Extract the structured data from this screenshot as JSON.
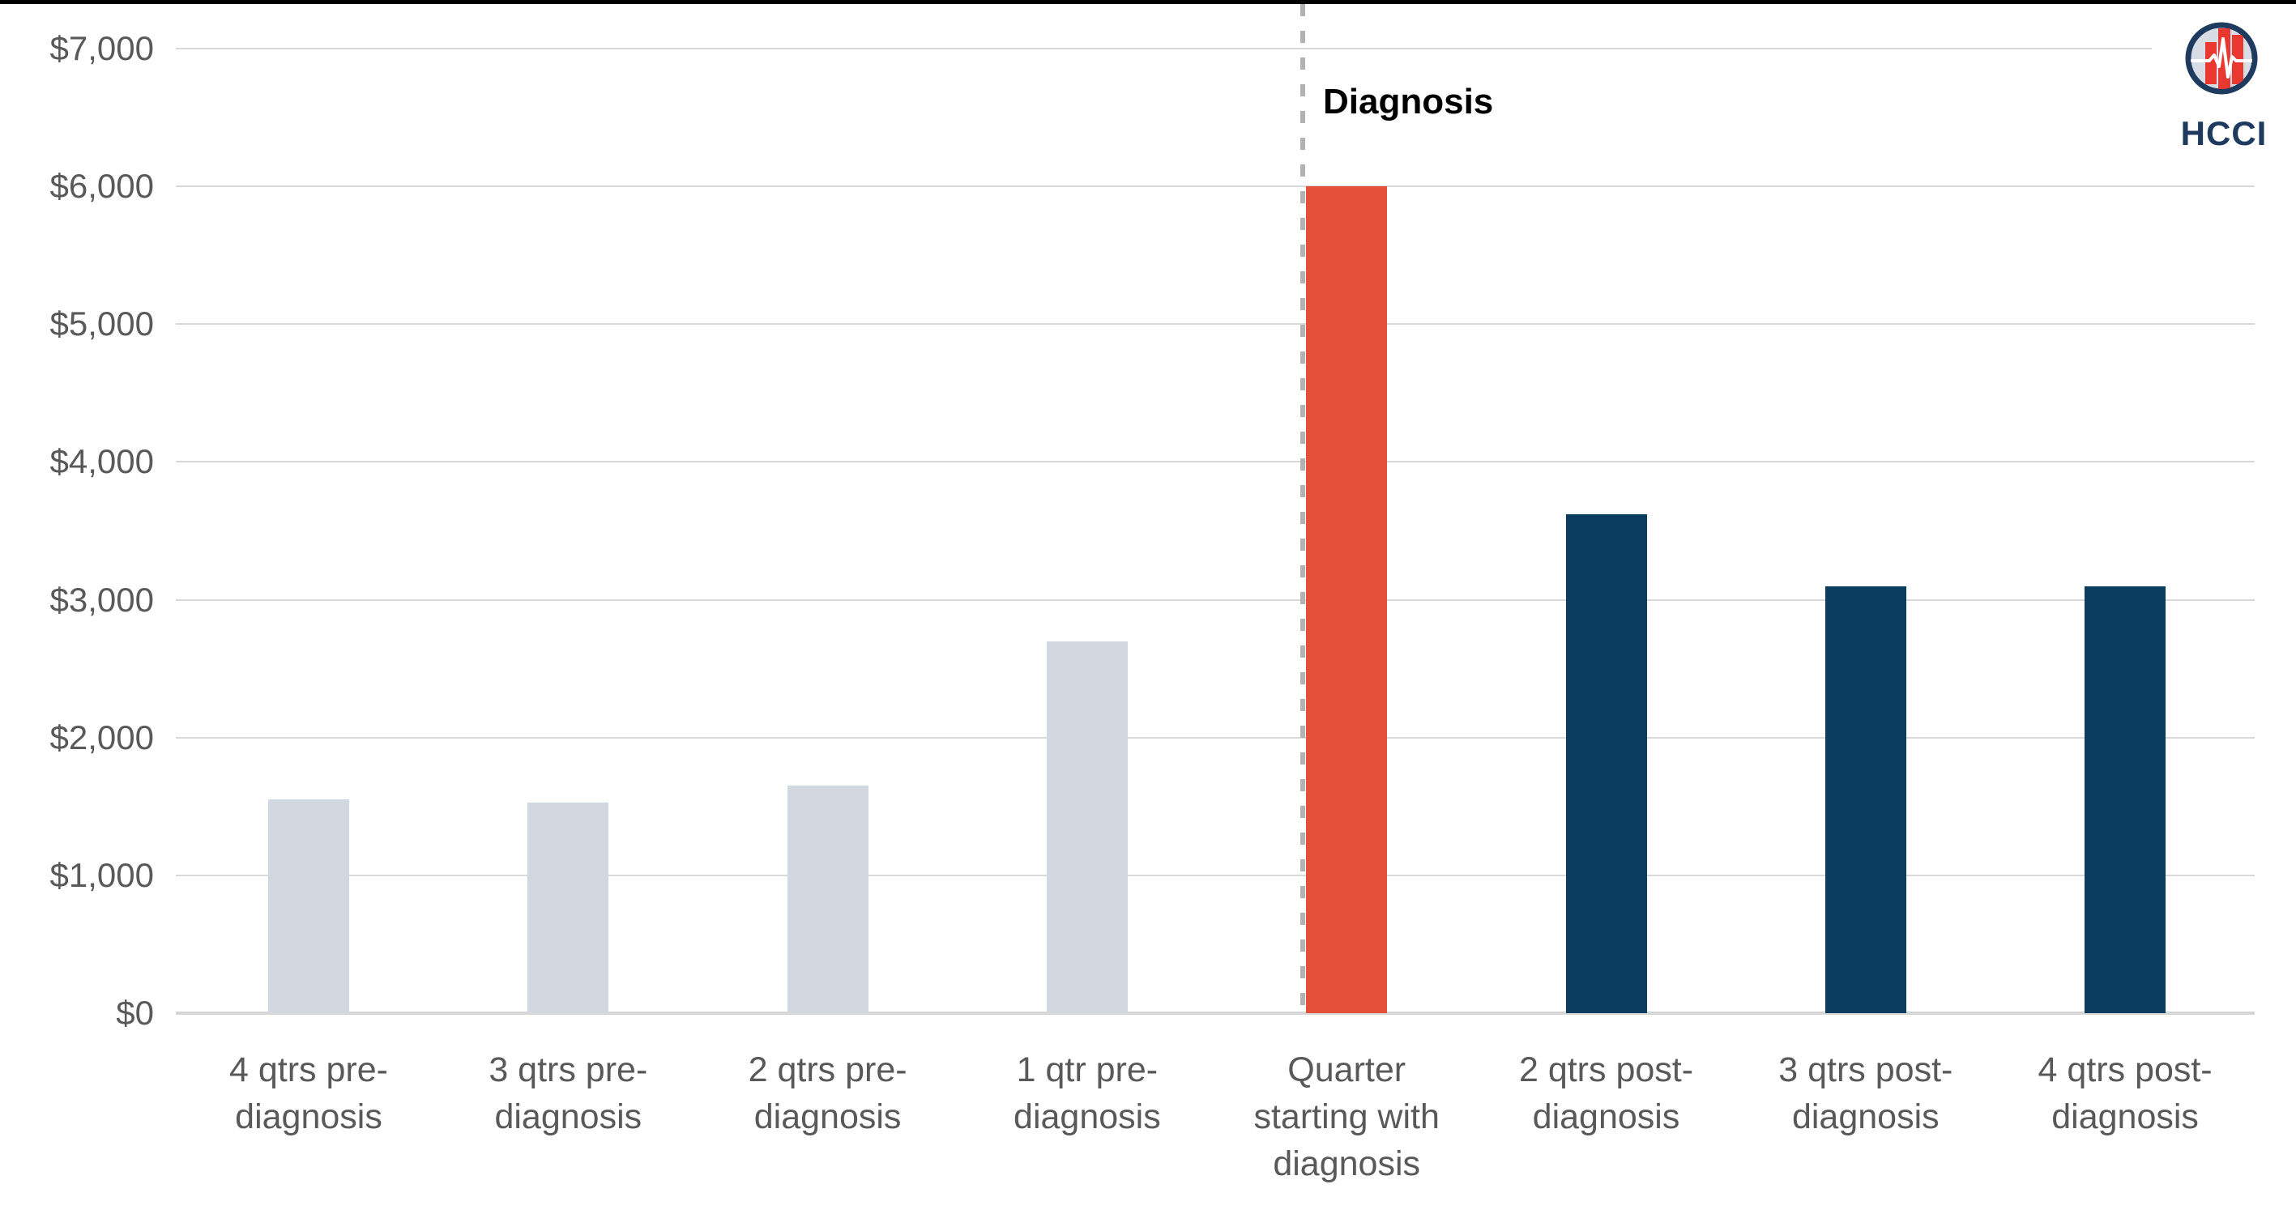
{
  "chart_data": {
    "type": "bar",
    "title": "",
    "xlabel": "",
    "ylabel": "",
    "categories": [
      "4 qtrs pre-\ndiagnosis",
      "3 qtrs pre-\ndiagnosis",
      "2 qtrs pre-\ndiagnosis",
      "1 qtr pre-\ndiagnosis",
      "Quarter\nstarting with\ndiagnosis",
      "2 qtrs post-\ndiagnosis",
      "3 qtrs post-\ndiagnosis",
      "4 qtrs post-\ndiagnosis"
    ],
    "values": [
      1550,
      1530,
      1650,
      2700,
      6000,
      3620,
      3100,
      3100
    ],
    "bar_roles": [
      "pre",
      "pre",
      "pre",
      "pre",
      "diagnosis",
      "post",
      "post",
      "post"
    ],
    "colors": {
      "pre": "#D2D8E0",
      "diagnosis": "#E5503A",
      "post": "#0B3D60"
    },
    "ylim": [
      0,
      7000
    ],
    "ytick_values": [
      0,
      1000,
      2000,
      3000,
      4000,
      5000,
      6000,
      7000
    ],
    "ytick_labels": [
      "$0",
      "$1,000",
      "$2,000",
      "$3,000",
      "$4,000",
      "$5,000",
      "$6,000",
      "$7,000"
    ],
    "grid": "horizontal",
    "gridline_color": "#D9D9D9",
    "axis_text_color": "#595959",
    "legend": "none",
    "annotation": {
      "text": "Diagnosis",
      "line_style": "dashed-vertical",
      "line_color": "#B3B3B3"
    }
  },
  "logo": {
    "text": "HCCI",
    "icon": "hcci-pulse-bars-icon",
    "navy": "#1E3A5F",
    "red": "#E8382F",
    "circle_fill": "#D8DDE5",
    "pulse_color": "#FFFFFF"
  },
  "page": {
    "background": "#FFFFFF",
    "top_border_color": "#000000"
  }
}
